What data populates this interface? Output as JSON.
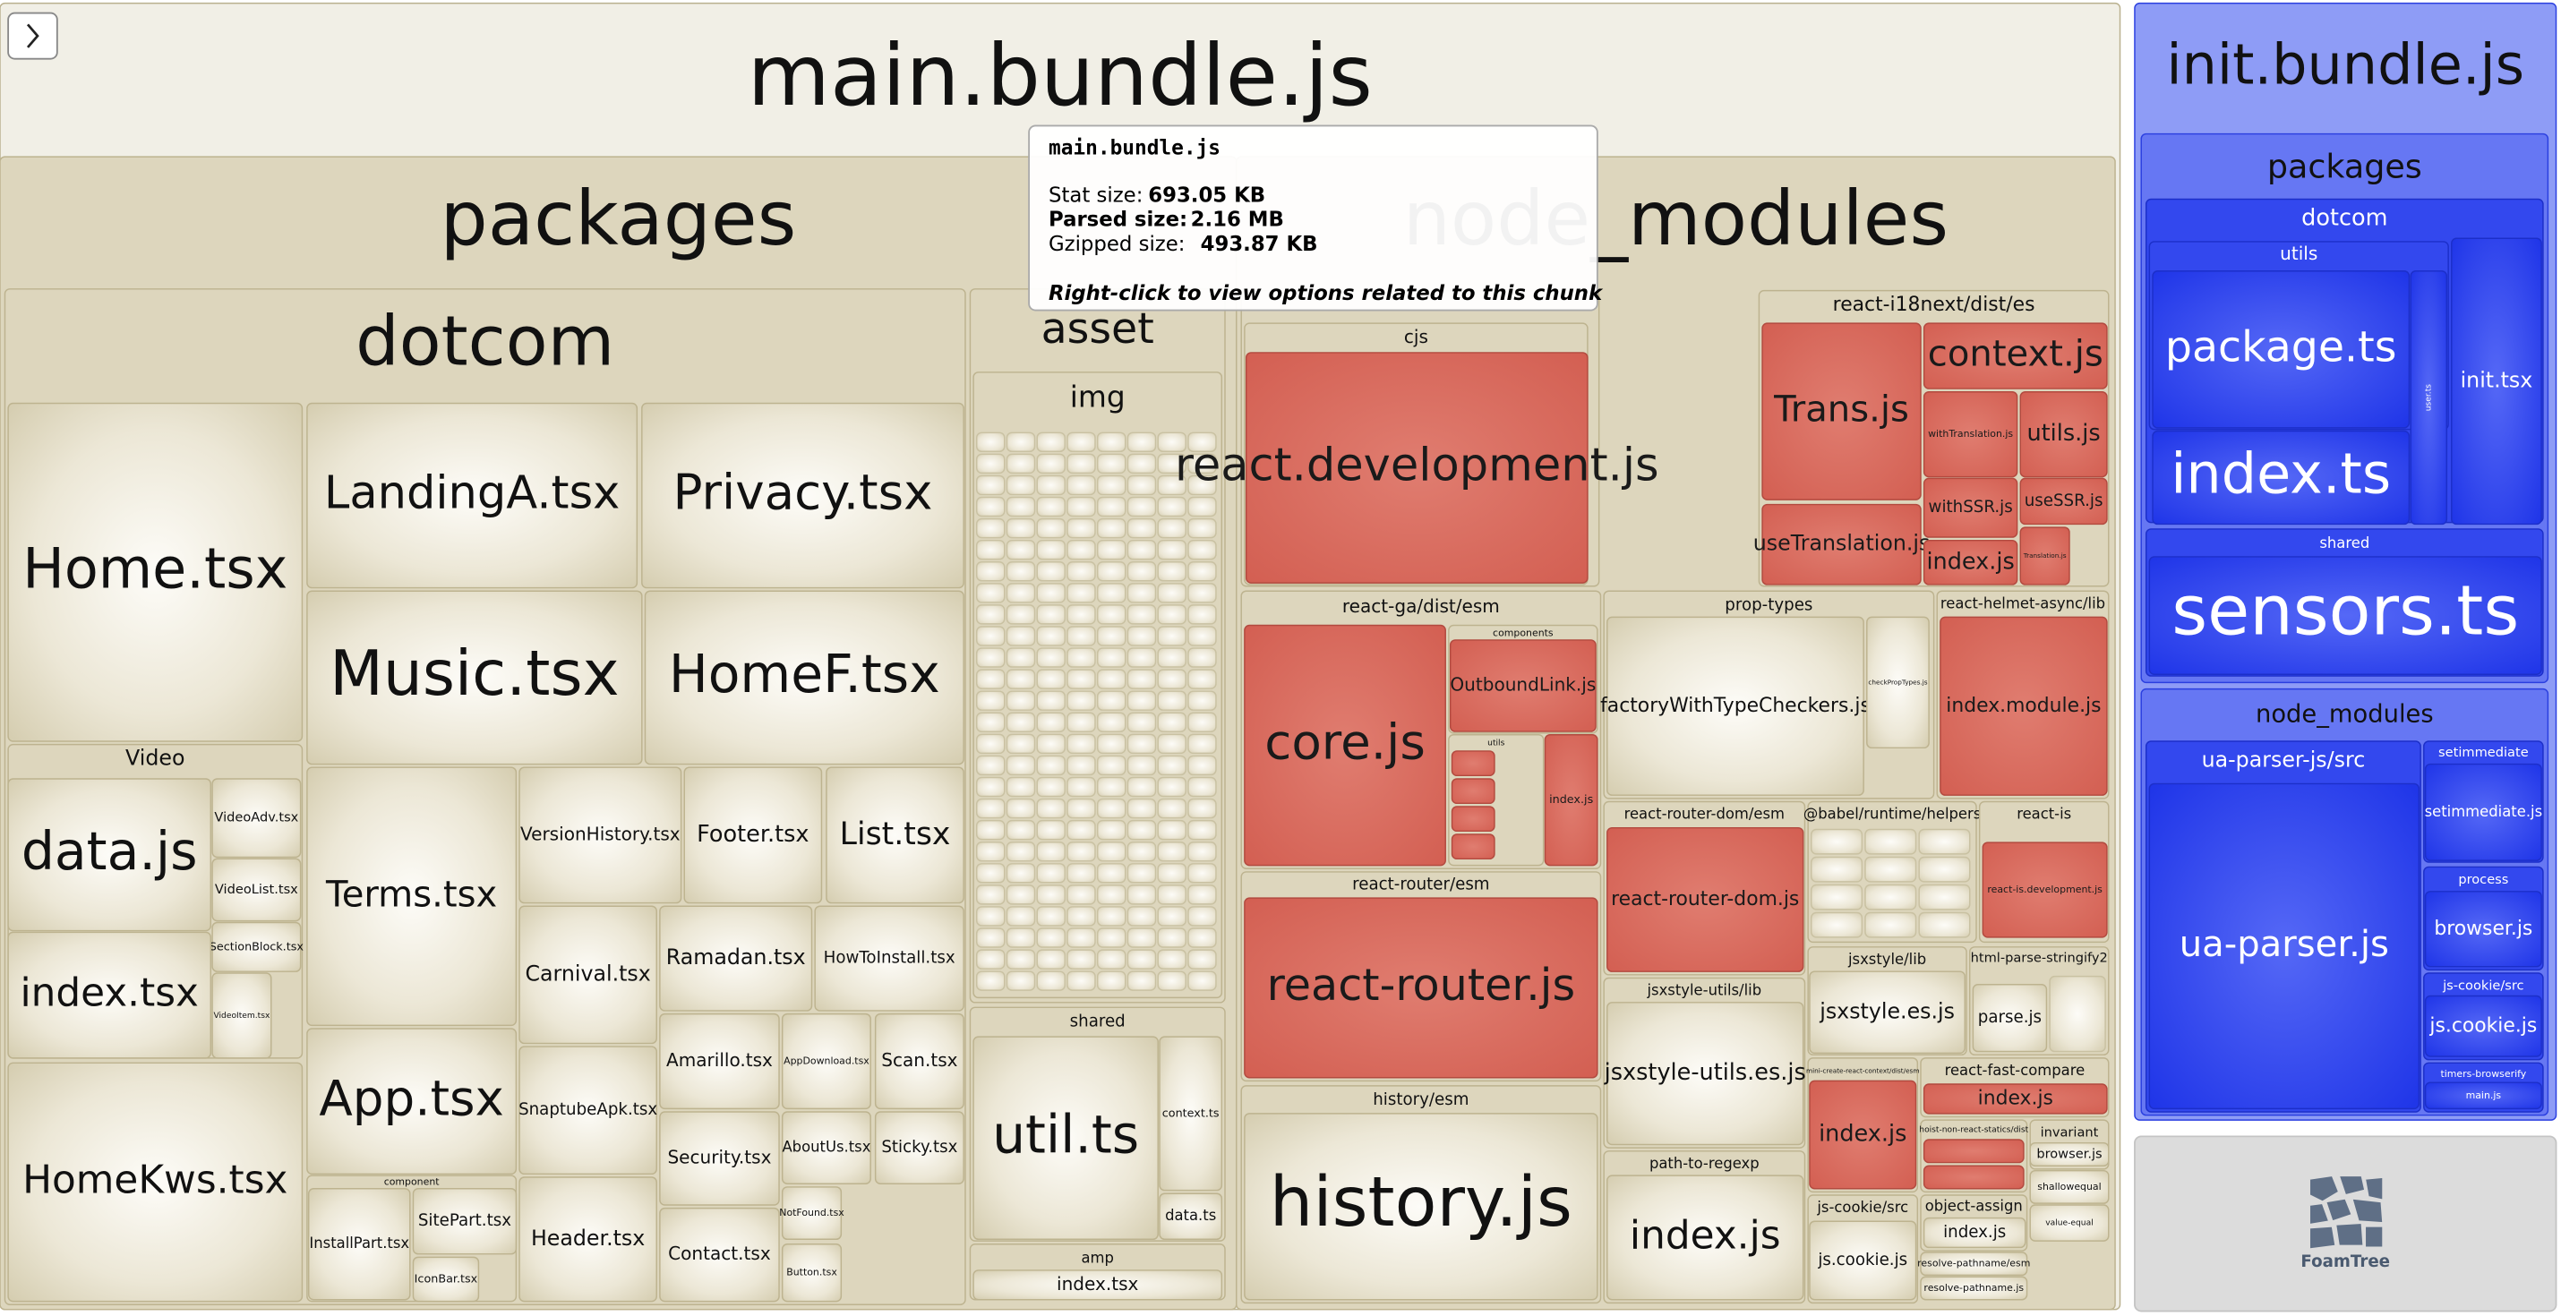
{
  "nodes": [
    {
      "label": "main.bundle.js"
    },
    {
      "label": "packages"
    },
    {
      "label": "node_modules"
    },
    {
      "label": "dotcom"
    },
    {
      "label": "Home.tsx"
    },
    {
      "label": "LandingA.tsx"
    },
    {
      "label": "Privacy.tsx"
    },
    {
      "label": "Music.tsx"
    },
    {
      "label": "HomeF.tsx"
    },
    {
      "label": "Video"
    },
    {
      "label": "data.js"
    },
    {
      "label": "VideoAdv.tsx"
    },
    {
      "label": "VideoList.tsx"
    },
    {
      "label": "SectionBlock.tsx"
    },
    {
      "label": "index.tsx"
    },
    {
      "label": "VideoItem.tsx"
    },
    {
      "label": "HomeKws.tsx"
    },
    {
      "label": "Terms.tsx"
    },
    {
      "label": "App.tsx"
    },
    {
      "label": "component"
    },
    {
      "label": "InstallPart.tsx"
    },
    {
      "label": "SitePart.tsx"
    },
    {
      "label": "IconBar.tsx"
    },
    {
      "label": "VersionHistory.tsx"
    },
    {
      "label": "Footer.tsx"
    },
    {
      "label": "List.tsx"
    },
    {
      "label": "Carnival.tsx"
    },
    {
      "label": "Ramadan.tsx"
    },
    {
      "label": "HowToInstall.tsx"
    },
    {
      "label": "SnaptubeApk.tsx"
    },
    {
      "label": "Amarillo.tsx"
    },
    {
      "label": "AppDownload.tsx"
    },
    {
      "label": "Scan.tsx"
    },
    {
      "label": "Header.tsx"
    },
    {
      "label": "Security.tsx"
    },
    {
      "label": "AboutUs.tsx"
    },
    {
      "label": "Sticky.tsx"
    },
    {
      "label": "Contact.tsx"
    },
    {
      "label": "NotFound.tsx"
    },
    {
      "label": "Button.tsx"
    },
    {
      "label": "asset"
    },
    {
      "label": "img"
    },
    {
      "label": "shared"
    },
    {
      "label": "util.ts"
    },
    {
      "label": "context.ts"
    },
    {
      "label": "data.ts"
    },
    {
      "label": "amp"
    },
    {
      "label": "index.tsx"
    },
    {
      "label": "cjs"
    },
    {
      "label": "react.development.js"
    },
    {
      "label": "react-i18next/dist/es"
    },
    {
      "label": "Trans.js"
    },
    {
      "label": "context.js"
    },
    {
      "label": "withTranslation.js"
    },
    {
      "label": "utils.js"
    },
    {
      "label": "withSSR.js"
    },
    {
      "label": "useSSR.js"
    },
    {
      "label": "useTranslation.js"
    },
    {
      "label": "index.js"
    },
    {
      "label": "Translation.js"
    },
    {
      "label": "react-ga/dist/esm"
    },
    {
      "label": "core.js"
    },
    {
      "label": "components"
    },
    {
      "label": "OutboundLink.js"
    },
    {
      "label": "utils"
    },
    {
      "label": "index.js"
    },
    {
      "label": "react-router/esm"
    },
    {
      "label": "react-router.js"
    },
    {
      "label": "history/esm"
    },
    {
      "label": "history.js"
    },
    {
      "label": "prop-types"
    },
    {
      "label": "factoryWithTypeCheckers.js"
    },
    {
      "label": "checkPropTypes.js"
    },
    {
      "label": "react-helmet-async/lib"
    },
    {
      "label": "index.module.js"
    },
    {
      "label": "react-router-dom/esm"
    },
    {
      "label": "react-router-dom.js"
    },
    {
      "label": "@babel/runtime/helpers"
    },
    {
      "label": "react-is"
    },
    {
      "label": "react-is.development.js"
    },
    {
      "label": "jsxstyle-utils/lib"
    },
    {
      "label": "jsxstyle-utils.es.js"
    },
    {
      "label": "jsxstyle/lib"
    },
    {
      "label": "jsxstyle.es.js"
    },
    {
      "label": "html-parse-stringify2"
    },
    {
      "label": "parse.js"
    },
    {
      "label": "path-to-regexp"
    },
    {
      "label": "index.js"
    },
    {
      "label": "mini-create-react-context/dist/esm"
    },
    {
      "label": "index.js"
    },
    {
      "label": "react-fast-compare"
    },
    {
      "label": "index.js"
    },
    {
      "label": "hoist-non-react-statics/dist"
    },
    {
      "label": "invariant"
    },
    {
      "label": "browser.js"
    },
    {
      "label": "shallowequal"
    },
    {
      "label": "value-equal"
    },
    {
      "label": "js-cookie/src"
    },
    {
      "label": "js.cookie.js"
    },
    {
      "label": "object-assign"
    },
    {
      "label": "index.js"
    },
    {
      "label": "resolve-pathname/esm"
    },
    {
      "label": "resolve-pathname.js"
    },
    {
      "label": "init.bundle.js"
    },
    {
      "label": "packages"
    },
    {
      "label": "dotcom"
    },
    {
      "label": "utils"
    },
    {
      "label": "package.ts"
    },
    {
      "label": "user.ts"
    },
    {
      "label": "index.ts"
    },
    {
      "label": "init.tsx"
    },
    {
      "label": "shared"
    },
    {
      "label": "sensors.ts"
    },
    {
      "label": "node_modules"
    },
    {
      "label": "ua-parser-js/src"
    },
    {
      "label": "ua-parser.js"
    },
    {
      "label": "setimmediate"
    },
    {
      "label": "setimmediate.js"
    },
    {
      "label": "process"
    },
    {
      "label": "browser.js"
    },
    {
      "label": "js-cookie/src"
    },
    {
      "label": "js.cookie.js"
    },
    {
      "label": "timers-browserify"
    },
    {
      "label": "main.js"
    }
  ],
  "tooltip": {
    "title": "main.bundle.js",
    "stat_label": "Stat size:",
    "stat_value": "693.05 KB",
    "parsed_label": "Parsed size:",
    "parsed_value": "2.16 MB",
    "gzip_label": "Gzipped size:",
    "gzip_value": "493.87 KB",
    "hint": "Right-click to view options related to this chunk"
  },
  "logo": "FoamTree"
}
